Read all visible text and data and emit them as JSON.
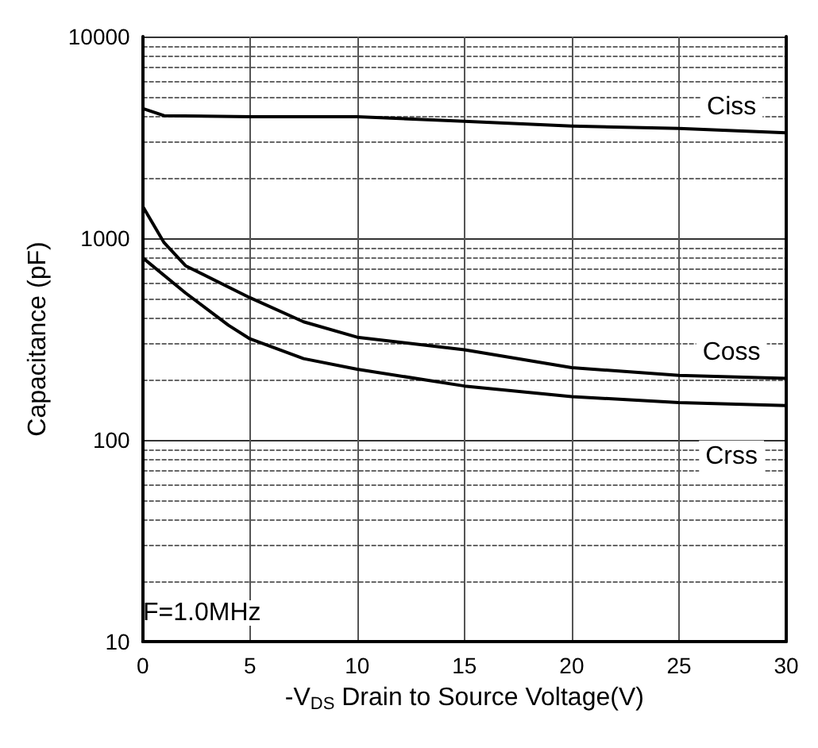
{
  "chart_data": {
    "type": "line",
    "xlabel": "-V$_{DS}$ Drain to Source Voltage(V)",
    "ylabel": "Capacitance (pF)",
    "log": "y",
    "xlim": [
      0,
      30
    ],
    "xticks": [
      0,
      5,
      10,
      15,
      20,
      25,
      30
    ],
    "ylim": [
      10,
      10000
    ],
    "yticks": [
      10,
      100,
      1000,
      10000
    ],
    "grid": true,
    "legend": false,
    "marker": "none",
    "line_style": "solid",
    "annotations": [
      "F=1.0MHz"
    ],
    "series": [
      {
        "name": "Ciss",
        "color": "#000000",
        "x": [
          0,
          1,
          5,
          10,
          15,
          20,
          25,
          30
        ],
        "values": [
          4400,
          4050,
          4000,
          4000,
          3800,
          3600,
          3500,
          3330
        ]
      },
      {
        "name": "Coss",
        "color": "#000000",
        "x": [
          0,
          1,
          2,
          5,
          7.5,
          10,
          15,
          20,
          25,
          30
        ],
        "values": [
          1440,
          950,
          730,
          507,
          385,
          323,
          280,
          228,
          209,
          202
        ]
      },
      {
        "name": "Crss",
        "color": "#000000",
        "x": [
          0,
          2,
          4,
          5,
          7.5,
          10,
          15,
          20,
          25,
          30
        ],
        "values": [
          800,
          535,
          370,
          317,
          253,
          224,
          185,
          164,
          153,
          148
        ]
      }
    ]
  }
}
